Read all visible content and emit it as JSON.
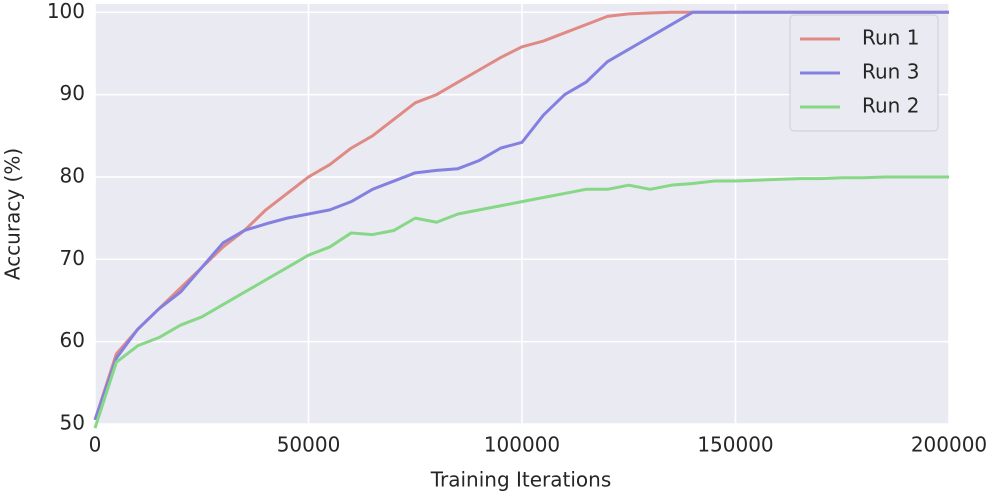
{
  "chart_data": {
    "type": "line",
    "xlabel": "Training Iterations",
    "ylabel": "Accuracy (%)",
    "x": [
      0,
      5000,
      10000,
      15000,
      20000,
      25000,
      30000,
      35000,
      40000,
      45000,
      50000,
      55000,
      60000,
      65000,
      70000,
      75000,
      80000,
      85000,
      90000,
      95000,
      100000,
      105000,
      110000,
      115000,
      120000,
      125000,
      130000,
      135000,
      140000,
      145000,
      150000,
      155000,
      160000,
      165000,
      170000,
      175000,
      180000,
      185000,
      190000,
      195000,
      200000
    ],
    "series": [
      {
        "name": "Run 1",
        "color": "#e08a86",
        "values": [
          50.5,
          58.5,
          61.5,
          64,
          66.5,
          69,
          71.5,
          73.5,
          76,
          78,
          80,
          81.5,
          83.5,
          85,
          87,
          89,
          90,
          91.5,
          93,
          94.5,
          95.8,
          96.5,
          97.5,
          98.5,
          99.5,
          99.8,
          99.9,
          100,
          100,
          100,
          100,
          100,
          100,
          100,
          100,
          100,
          100,
          100,
          100,
          100,
          100
        ]
      },
      {
        "name": "Run 3",
        "color": "#8480e0",
        "values": [
          50.5,
          58,
          61.5,
          64,
          66,
          69,
          72,
          73.5,
          74.3,
          75,
          75.5,
          76,
          77,
          78.5,
          79.5,
          80.5,
          80.8,
          81,
          82,
          83.5,
          84.2,
          87.5,
          90,
          91.5,
          94,
          95.5,
          97,
          98.5,
          100,
          100,
          100,
          100,
          100,
          100,
          100,
          100,
          100,
          100,
          100,
          100,
          100
        ]
      },
      {
        "name": "Run 2",
        "color": "#86d886",
        "values": [
          49.5,
          57.5,
          59.5,
          60.5,
          62,
          63,
          64.5,
          66,
          67.5,
          69,
          70.5,
          71.5,
          73.2,
          73,
          73.5,
          75,
          74.5,
          75.5,
          76,
          76.5,
          77,
          77.5,
          78,
          78.5,
          78.5,
          79,
          78.5,
          79,
          79.2,
          79.5,
          79.5,
          79.6,
          79.7,
          79.8,
          79.8,
          79.9,
          79.9,
          80,
          80,
          80,
          80
        ]
      }
    ],
    "xlim": [
      0,
      200000
    ],
    "xticks": [
      0,
      50000,
      100000,
      150000,
      200000
    ],
    "ylim": [
      50,
      101
    ],
    "yticks": [
      50,
      60,
      70,
      80,
      90,
      100
    ],
    "grid": true,
    "legend": "upper right"
  }
}
